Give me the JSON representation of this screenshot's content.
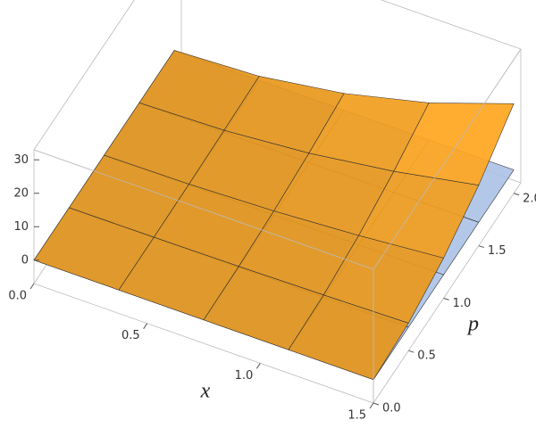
{
  "chart_data": {
    "type": "surface3d",
    "xlabel": "x",
    "ylabel": "p",
    "x": [
      0,
      0.375,
      0.75,
      1.125,
      1.5
    ],
    "y": [
      0,
      0.5,
      1,
      1.5,
      2
    ],
    "series": [
      {
        "color": "#b9d3fb",
        "z": [
          [
            0,
            0,
            0,
            0,
            0
          ],
          [
            0,
            0,
            0,
            0,
            0
          ],
          [
            0,
            0,
            0,
            0,
            0
          ],
          [
            0,
            0,
            0,
            0,
            0
          ],
          [
            0,
            0,
            0,
            0,
            0
          ]
        ]
      },
      {
        "color": "#f7a21e",
        "z": [
          [
            0,
            0,
            0,
            0,
            0
          ],
          [
            0,
            0.1,
            0.3,
            0.7,
            1.2
          ],
          [
            0,
            0.3,
            1.2,
            2.8,
            5.0
          ],
          [
            0,
            0.7,
            2.8,
            6.3,
            11.1
          ],
          [
            0,
            1.2,
            5.0,
            11.1,
            19.8
          ]
        ]
      }
    ],
    "xlim": [
      0,
      1.5
    ],
    "ylim": [
      0,
      2.1
    ],
    "zlim": [
      -7,
      33
    ],
    "xticks": [
      {
        "value": 0,
        "label": "0.0"
      },
      {
        "value": 0.5,
        "label": "0.5"
      },
      {
        "value": 1,
        "label": "1.0"
      },
      {
        "value": 1.5,
        "label": "1.5"
      }
    ],
    "yticks": [
      {
        "value": 0,
        "label": "0.0"
      },
      {
        "value": 0.5,
        "label": "0.5"
      },
      {
        "value": 1,
        "label": "1.0"
      },
      {
        "value": 1.5,
        "label": "1.5"
      },
      {
        "value": 2,
        "label": "2.0"
      }
    ],
    "zticks": [
      0,
      10,
      20,
      30
    ]
  }
}
